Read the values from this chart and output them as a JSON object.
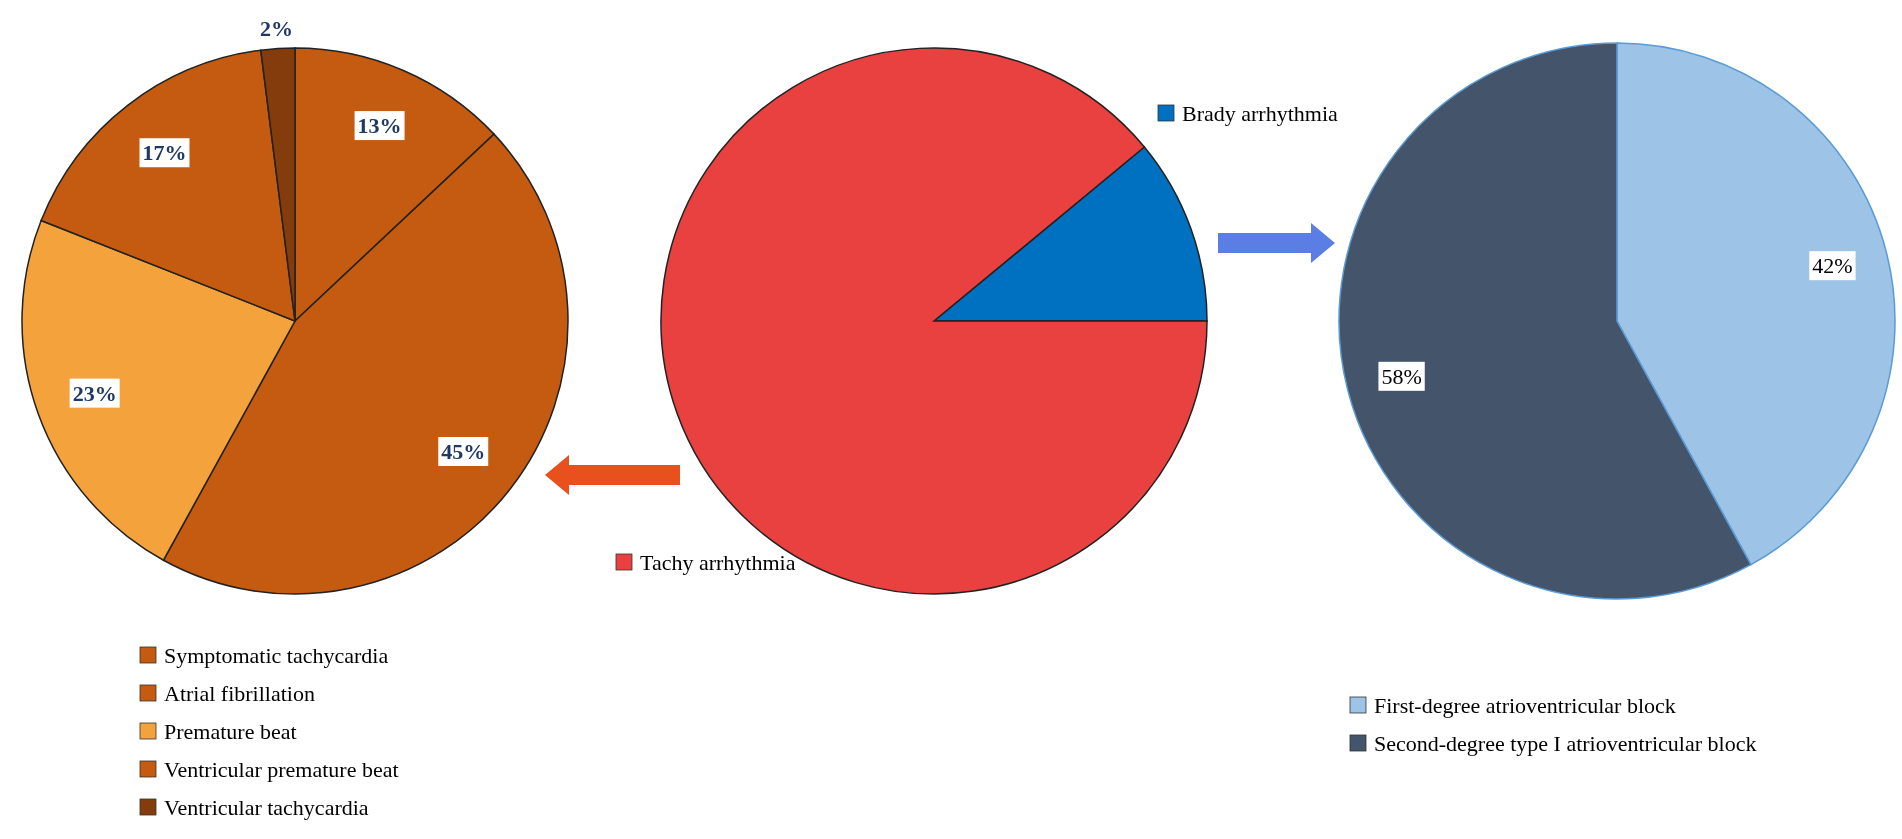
{
  "chart_data": [
    {
      "type": "pie",
      "categories": [
        "Symptomatic tachycardia",
        "Atrial fibrillation",
        "Premature beat",
        "Ventricular premature beat",
        "Ventricular tachycardia"
      ],
      "values": [
        13,
        45,
        23,
        17,
        2
      ],
      "colors": [
        "#c55a11",
        "#c55a11",
        "#f4a23c",
        "#c55a11",
        "#843c0c"
      ],
      "value_labels": [
        "13%",
        "45%",
        "23%",
        "17%",
        "2%"
      ],
      "legend": "bottom"
    },
    {
      "type": "pie",
      "categories": [
        "Brady arrhythmia",
        "Tachy arrhythmia"
      ],
      "values": [
        11,
        89
      ],
      "colors": [
        "#0070c0",
        "#e8413f"
      ],
      "legend": "right"
    },
    {
      "type": "pie",
      "categories": [
        "First-degree atrioventricular block",
        "Second-degree type I atrioventricular block"
      ],
      "values": [
        42,
        58
      ],
      "colors": [
        "#9dc3e6",
        "#44546a"
      ],
      "value_labels": [
        "42%",
        "58%"
      ],
      "legend": "bottom"
    }
  ]
}
